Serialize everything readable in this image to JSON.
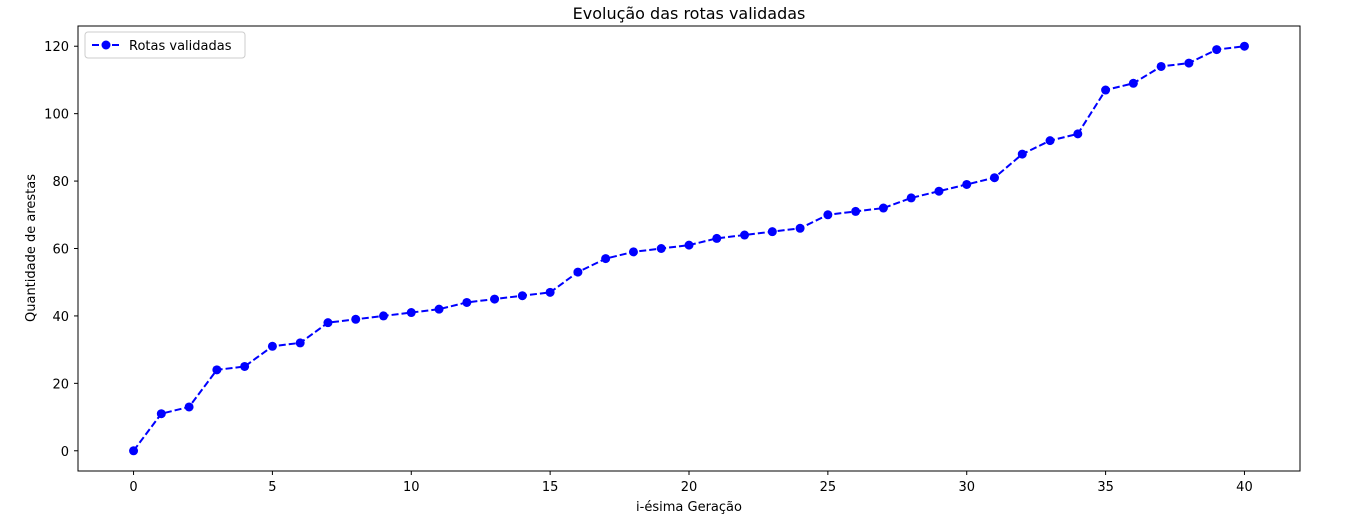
{
  "chart_data": {
    "type": "line",
    "title": "Evolução das rotas validadas",
    "xlabel": "i-ésima Geração",
    "ylabel": "Quantidade de arestas",
    "xlim": [
      -2,
      42
    ],
    "ylim": [
      -6,
      126
    ],
    "xticks": [
      0,
      5,
      10,
      15,
      20,
      25,
      30,
      35,
      40
    ],
    "yticks": [
      0,
      20,
      40,
      60,
      80,
      100,
      120
    ],
    "grid": false,
    "legend_position": "top-left",
    "series": [
      {
        "name": "Rotas validadas",
        "color": "#0000ff",
        "line_style": "dashed",
        "marker": "circle",
        "x": [
          0,
          1,
          2,
          3,
          4,
          5,
          6,
          7,
          8,
          9,
          10,
          11,
          12,
          13,
          14,
          15,
          16,
          17,
          18,
          19,
          20,
          21,
          22,
          23,
          24,
          25,
          26,
          27,
          28,
          29,
          30,
          31,
          32,
          33,
          34,
          35,
          36,
          37,
          38,
          39,
          40
        ],
        "values": [
          0,
          11,
          13,
          24,
          25,
          31,
          32,
          38,
          39,
          40,
          41,
          42,
          44,
          45,
          46,
          47,
          53,
          57,
          59,
          60,
          61,
          63,
          64,
          65,
          66,
          70,
          71,
          72,
          75,
          77,
          79,
          81,
          88,
          92,
          94,
          107,
          109,
          114,
          115,
          119,
          120
        ]
      }
    ]
  }
}
